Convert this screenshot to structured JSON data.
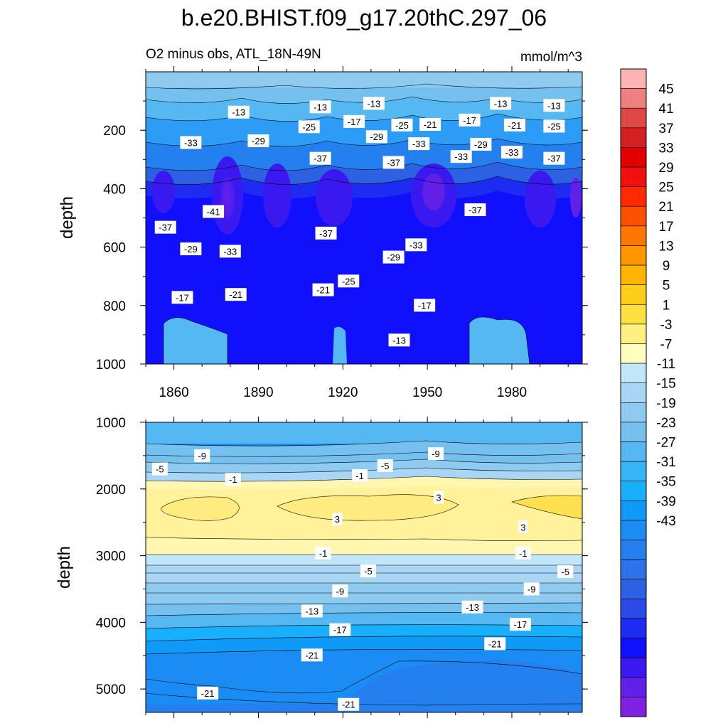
{
  "chart_data": {
    "type": "contour",
    "title": "b.e20.BHIST.f09_g17.20thC.297_06",
    "subtitle_left": "O2 minus obs, ATL_18N-49N",
    "units": "mmol/m^3",
    "colorbar": {
      "levels": [
        45,
        41,
        37,
        33,
        29,
        25,
        21,
        17,
        13,
        9,
        5,
        1,
        -3,
        -7,
        -11,
        -15,
        -19,
        -23,
        -27,
        -31,
        -35,
        -39,
        -43
      ],
      "colors": [
        "#ffb3b3",
        "#f08080",
        "#e04848",
        "#d42020",
        "#e00000",
        "#f01010",
        "#ff2a00",
        "#ff5000",
        "#ff7600",
        "#ff9600",
        "#ffb400",
        "#ffcd1a",
        "#ffe040",
        "#fff080",
        "#ffffc0",
        "#c0e6f8",
        "#a8d6f4",
        "#8fcbf0",
        "#74c0ef",
        "#56b8f2",
        "#38b4f8",
        "#18b0fc",
        "#109af8",
        "#1a8cf4",
        "#2480ee",
        "#2c72e8",
        "#2c62e2",
        "#2c4ae8",
        "#1e2cf2",
        "#1010fc",
        "#3a18f0",
        "#6020e8",
        "#8020e0"
      ]
    },
    "x_axis": {
      "label": "",
      "ticks": [
        1860,
        1890,
        1920,
        1950,
        1980
      ],
      "range": [
        1850,
        2005
      ]
    },
    "panels": [
      {
        "name": "upper",
        "ylabel": "depth",
        "yrange": [
          0,
          1000
        ],
        "yticks": [
          200,
          400,
          600,
          800,
          1000
        ],
        "contour_labels": [
          {
            "text": "-13",
            "x": 1883,
            "y": 138
          },
          {
            "text": "-13",
            "x": 1912,
            "y": 120
          },
          {
            "text": "-13",
            "x": 1931,
            "y": 108
          },
          {
            "text": "-13",
            "x": 1976,
            "y": 108
          },
          {
            "text": "-13",
            "x": 1995,
            "y": 115
          },
          {
            "text": "-17",
            "x": 1924,
            "y": 170
          },
          {
            "text": "-17",
            "x": 1965,
            "y": 165
          },
          {
            "text": "-25",
            "x": 1908,
            "y": 188
          },
          {
            "text": "-25",
            "x": 1941,
            "y": 182
          },
          {
            "text": "-21",
            "x": 1951,
            "y": 180
          },
          {
            "text": "-21",
            "x": 1981,
            "y": 182
          },
          {
            "text": "-25",
            "x": 1995,
            "y": 186
          },
          {
            "text": "-33",
            "x": 1866,
            "y": 242
          },
          {
            "text": "-29",
            "x": 1890,
            "y": 236
          },
          {
            "text": "-29",
            "x": 1932,
            "y": 222
          },
          {
            "text": "-33",
            "x": 1947,
            "y": 246
          },
          {
            "text": "-29",
            "x": 1969,
            "y": 248
          },
          {
            "text": "-33",
            "x": 1962,
            "y": 290
          },
          {
            "text": "-37",
            "x": 1912,
            "y": 296
          },
          {
            "text": "-37",
            "x": 1938,
            "y": 310
          },
          {
            "text": "-33",
            "x": 1980,
            "y": 275
          },
          {
            "text": "-37",
            "x": 1995,
            "y": 296
          },
          {
            "text": "-41",
            "x": 1874,
            "y": 478
          },
          {
            "text": "-37",
            "x": 1857,
            "y": 532
          },
          {
            "text": "-37",
            "x": 1967,
            "y": 472
          },
          {
            "text": "-37",
            "x": 1914,
            "y": 552
          },
          {
            "text": "-29",
            "x": 1866,
            "y": 606
          },
          {
            "text": "-33",
            "x": 1880,
            "y": 614
          },
          {
            "text": "-33",
            "x": 1946,
            "y": 592
          },
          {
            "text": "-29",
            "x": 1938,
            "y": 634
          },
          {
            "text": "-25",
            "x": 1922,
            "y": 716
          },
          {
            "text": "-21",
            "x": 1913,
            "y": 746
          },
          {
            "text": "-21",
            "x": 1882,
            "y": 762
          },
          {
            "text": "-17",
            "x": 1863,
            "y": 772
          },
          {
            "text": "-17",
            "x": 1949,
            "y": 799
          },
          {
            "text": "-13",
            "x": 1940,
            "y": 918
          }
        ]
      },
      {
        "name": "lower",
        "ylabel": "depth",
        "yrange": [
          1000,
          5350
        ],
        "yticks": [
          1000,
          2000,
          3000,
          4000,
          5000
        ],
        "contour_labels": [
          {
            "text": "-9",
            "x": 1870,
            "y": 1500
          },
          {
            "text": "-5",
            "x": 1855,
            "y": 1700
          },
          {
            "text": "-9",
            "x": 1953,
            "y": 1470
          },
          {
            "text": "-5",
            "x": 1935,
            "y": 1650
          },
          {
            "text": "-1",
            "x": 1881,
            "y": 1855
          },
          {
            "text": "-1",
            "x": 1926,
            "y": 1800
          },
          {
            "text": "3",
            "x": 1954,
            "y": 2125
          },
          {
            "text": "3",
            "x": 1918,
            "y": 2450
          },
          {
            "text": "3",
            "x": 1984,
            "y": 2570
          },
          {
            "text": "-1",
            "x": 1913,
            "y": 2960
          },
          {
            "text": "-1",
            "x": 1984,
            "y": 2960
          },
          {
            "text": "-5",
            "x": 1929,
            "y": 3230
          },
          {
            "text": "-5",
            "x": 1999,
            "y": 3240
          },
          {
            "text": "-9",
            "x": 1919,
            "y": 3530
          },
          {
            "text": "-9",
            "x": 1987,
            "y": 3500
          },
          {
            "text": "-13",
            "x": 1909,
            "y": 3830
          },
          {
            "text": "-13",
            "x": 1966,
            "y": 3770
          },
          {
            "text": "-17",
            "x": 1919,
            "y": 4110
          },
          {
            "text": "-17",
            "x": 1983,
            "y": 4030
          },
          {
            "text": "-21",
            "x": 1974,
            "y": 4320
          },
          {
            "text": "-21",
            "x": 1909,
            "y": 4490
          },
          {
            "text": "-21",
            "x": 1872,
            "y": 5060
          },
          {
            "text": "-21",
            "x": 1922,
            "y": 5230
          }
        ]
      }
    ]
  }
}
